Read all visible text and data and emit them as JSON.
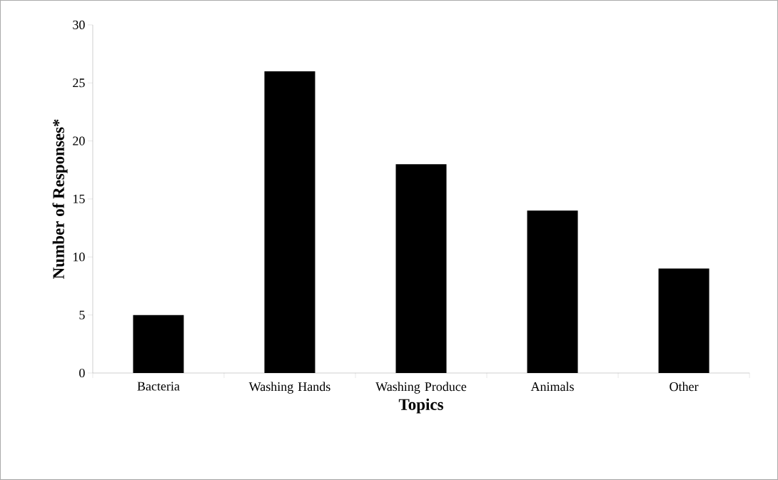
{
  "chart_data": {
    "type": "bar",
    "xlabel": "Topics",
    "ylabel": "Number of Responses*",
    "categories": [
      "Bacteria",
      "Washing Hands",
      "Washing Produce",
      "Animals",
      "Other"
    ],
    "values": [
      5,
      26,
      18,
      14,
      9
    ],
    "color": "#000000",
    "ylim": [
      0,
      30
    ],
    "yticks": [
      0,
      5,
      10,
      15,
      20,
      25,
      30
    ],
    "grid": false
  }
}
